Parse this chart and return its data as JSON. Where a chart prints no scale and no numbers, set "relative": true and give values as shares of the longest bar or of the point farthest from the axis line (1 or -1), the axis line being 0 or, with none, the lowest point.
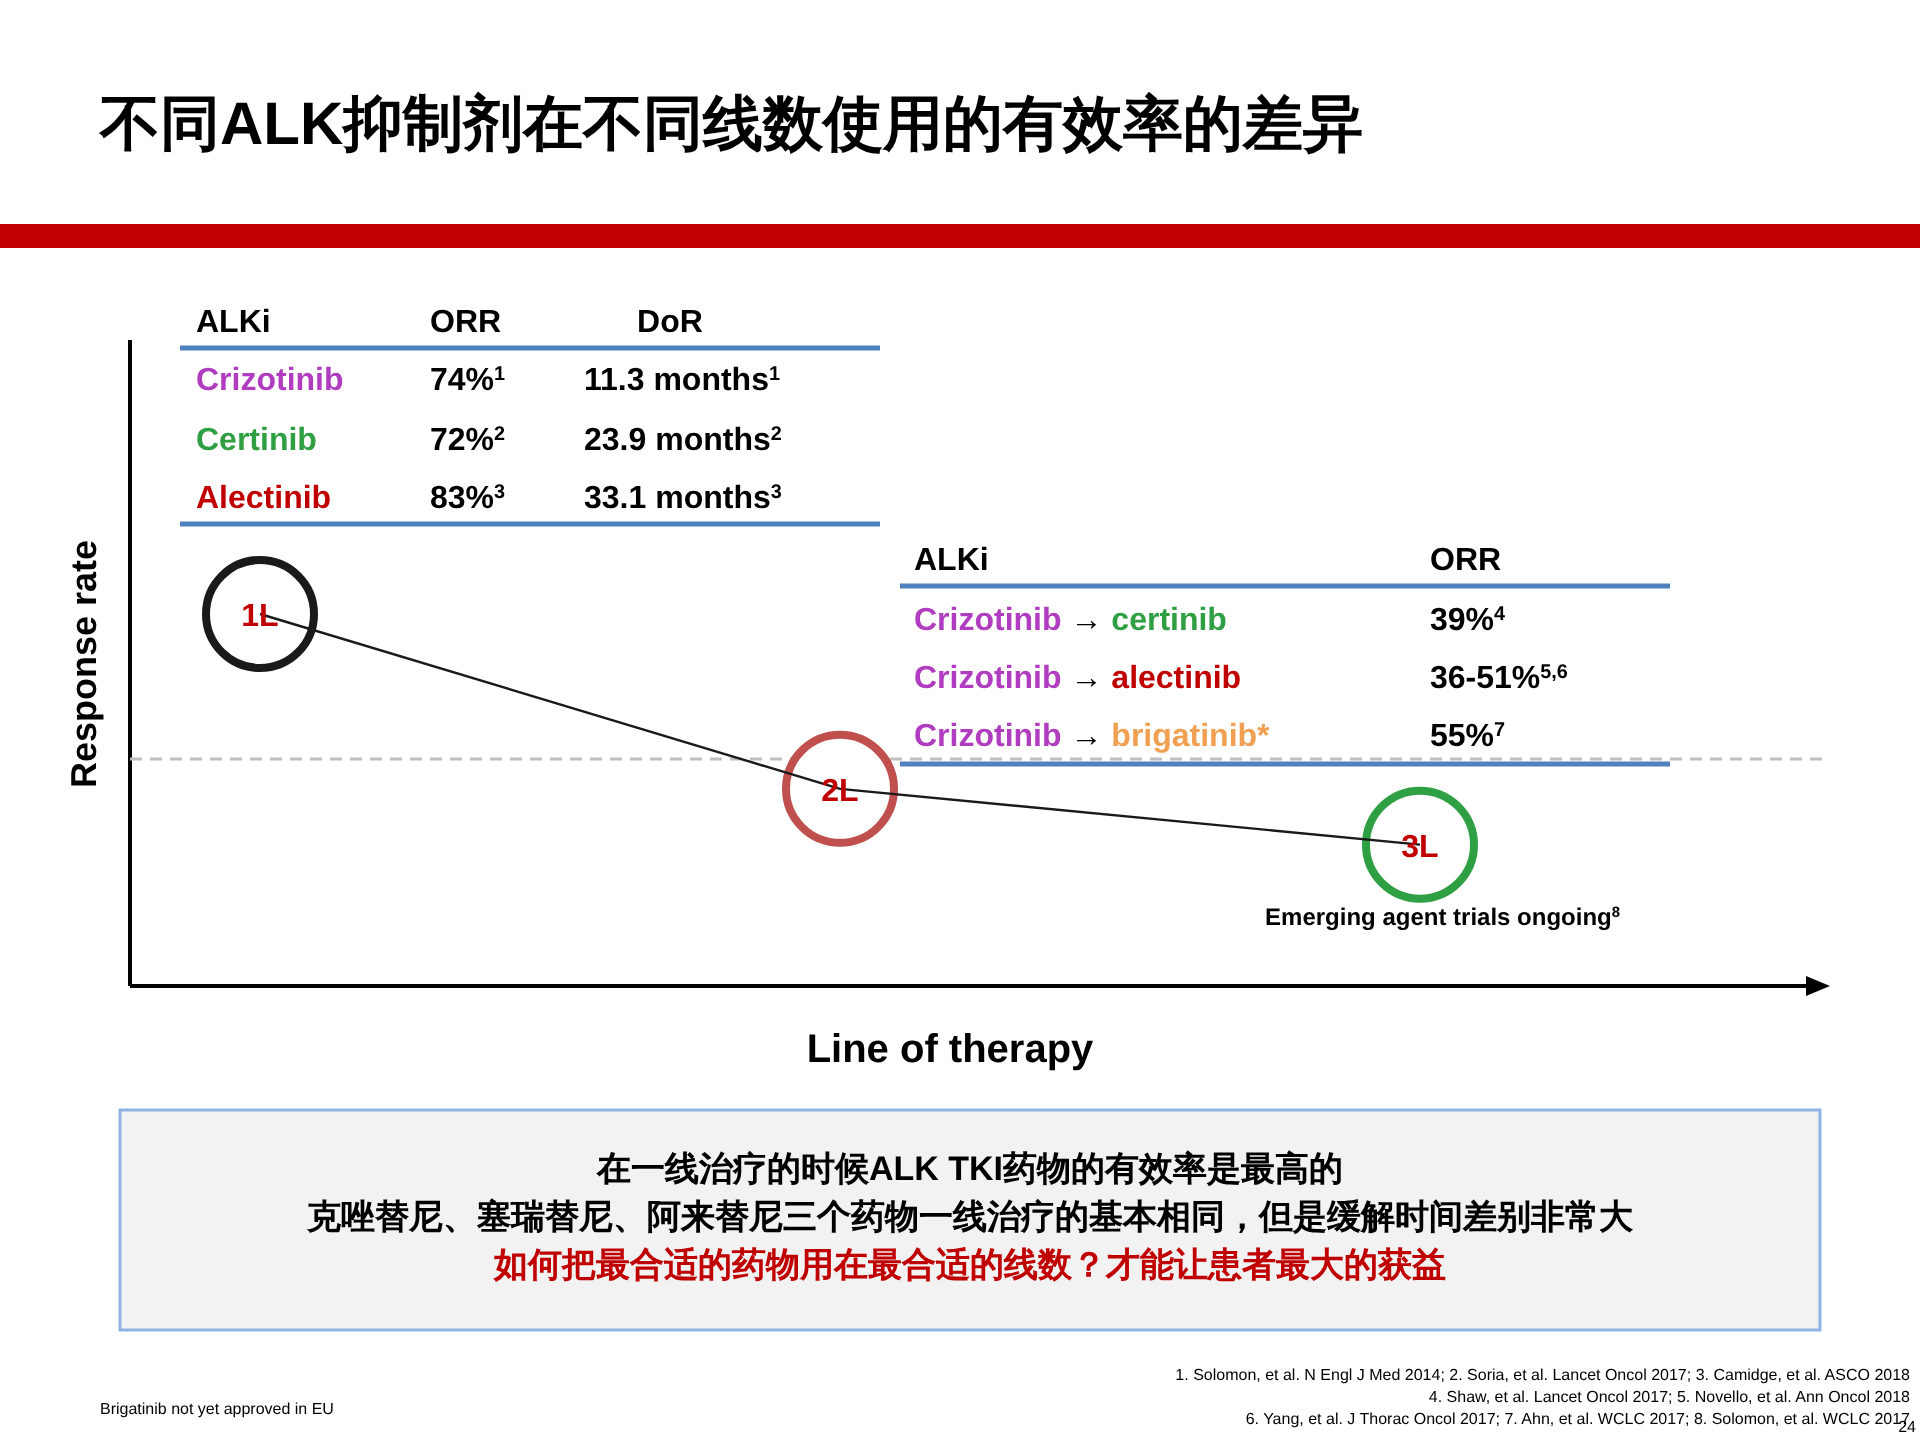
{
  "chart_data": {
    "type": "line",
    "title": "不同ALK抑制剂在不同线数使用的有效率的差异",
    "xlabel": "Line of therapy",
    "ylabel": "Response rate",
    "relative": true,
    "line_style": "solid",
    "categories": [
      "1L",
      "2L",
      "3L"
    ],
    "series": [
      {
        "color": "#1a1a1a",
        "colors": [
          "#1a1a1a",
          "#c0504d",
          "#2ea043"
        ],
        "values": [
          1,
          0.53,
          0.38
        ]
      }
    ],
    "ref_lines": [
      {
        "axis": "y",
        "value": 0.61,
        "color": "#bfbfbf",
        "line_style": "dashed"
      }
    ],
    "annotations": [
      "ALKi",
      "ORR",
      "DoR",
      "Crizotinib",
      "74%$^{1}$",
      "11.3 months$^{1}$",
      "Certinib",
      "72%$^{2}$",
      "23.9 months$^{2}$",
      "Alectinib",
      "83%$^{3}$",
      "33.1 months$^{3}$",
      "ALKi",
      "ORR",
      "Crizotinib → certinib",
      "39%$^{4}$",
      "Crizotinib → alectinib",
      "36-51%$^{5,6}$",
      "Crizotinib → brigatinib*",
      "55%$^{7}$",
      {
        "text": "Emerging agent trials ongoing$^{8}$",
        "x": "3L",
        "y": 0.38
      },
      "在一线治疗的时候ALK TKI药物的有效率是最高的",
      "克唑替尼、塞瑞替尼、阿来替尼三个药物一线治疗的基本相同，但是缓解时间差别非常大",
      "如何把最合适的药物用在最合适的线数？才能让患者最大的获益",
      "1. Solomon, et al. N Engl J Med 2014; 2. Soria, et al. Lancet Oncol 2017; 3. Camidge, et al. ASCO 2018",
      "4. Shaw, et al. Lancet Oncol 2017; 5. Novello, et al. Ann Oncol 2018",
      "6. Yang, et al. J Thorac Oncol 2017; 7. Ahn, et al. WCLC 2017; 8. Solomon, et al. WCLC 2017",
      "Brigatinib not yet approved in EU",
      "24"
    ]
  }
}
